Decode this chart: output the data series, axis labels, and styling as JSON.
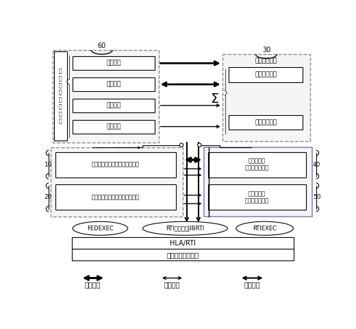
{
  "bg": "#ffffff",
  "sys_ctrl_label": "系\n统\n控\n制\n管\n理\n成\n员",
  "sys_ctrl_btns": [
    "创建联邦",
    "测试开始",
    "联邦暂停",
    "取消联邦"
  ],
  "channel_title": "信道仿真成员",
  "channel_items": [
    "自由空间损耗",
    "额外系统损耗"
  ],
  "sigma": "Σ",
  "tx_ds": "直扩数据链信号发射机仿真成员",
  "tx_fh": "跳频数据链信号发射机仿真成员",
  "rx_ds": "直扩数据链\n接收机仿真成员",
  "rx_fh": "跳频数据链\n接收机仿真成员",
  "fedexec": "FEDEXEC",
  "rti": "RTI接口模块JIBRTI",
  "rtiexec": "RTIEXEC",
  "hla": "HLA/RTI",
  "base": "底层通信支持系统",
  "legends": [
    "联邦管理",
    "数据传输",
    "时间推进"
  ],
  "nums": [
    "60",
    "30",
    "10",
    "20",
    "40",
    "50"
  ],
  "col_dashed": "#888888",
  "col_solid": "#000000",
  "col_rx_border": "#8888bb"
}
